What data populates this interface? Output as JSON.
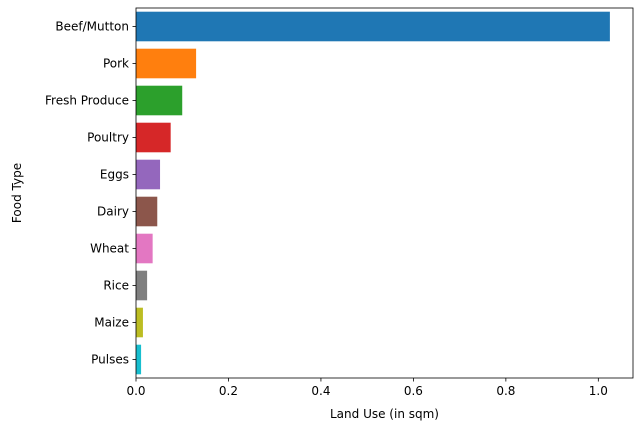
{
  "chart_data": {
    "type": "bar",
    "orientation": "horizontal",
    "title": "",
    "xlabel": "Land Use (in sqm)",
    "ylabel": "Food Type",
    "xlim": [
      0,
      1.075
    ],
    "xticks": [
      0.0,
      0.2,
      0.4,
      0.6,
      0.8,
      1.0
    ],
    "xtick_labels": [
      "0.0",
      "0.2",
      "0.4",
      "0.6",
      "0.8",
      "1.0"
    ],
    "grid": false,
    "legend": "none",
    "categories": [
      "Beef/Mutton",
      "Pork",
      "Fresh Produce",
      "Poultry",
      "Eggs",
      "Dairy",
      "Wheat",
      "Rice",
      "Maize",
      "Pulses"
    ],
    "values": [
      1.025,
      0.13,
      0.1,
      0.075,
      0.052,
      0.046,
      0.036,
      0.024,
      0.015,
      0.011
    ],
    "colors": [
      "#1f77b4",
      "#ff7f0e",
      "#2ca02c",
      "#d62728",
      "#9467bd",
      "#8c564b",
      "#e377c2",
      "#7f7f7f",
      "#bcbd22",
      "#17becf"
    ]
  }
}
